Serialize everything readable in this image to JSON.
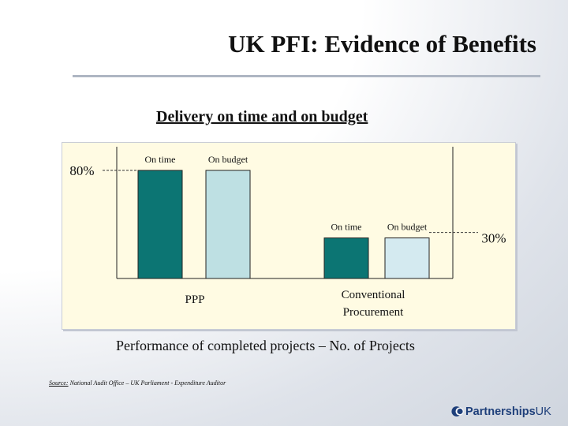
{
  "slide": {
    "title": "UK PFI: Evidence of  Benefits",
    "subtitle": "Delivery on time and on budget",
    "caption": "Performance of completed projects – No. of Projects",
    "source_label": "Source:",
    "source_text": " National Audit Office – UK Parliament - Expenditure Auditor",
    "logo_text": "Partnerships",
    "logo_suffix": "UK"
  },
  "colors": {
    "on_time": "#0c7573",
    "on_budget": "#bee0e3",
    "on_budget_conventional": "#d4eaf0",
    "panel": "#fffbe3",
    "brand": "#1e3f7a"
  },
  "chart_data": {
    "type": "bar",
    "groups": [
      "PPP",
      "Conventional Procurement"
    ],
    "series": [
      {
        "name": "On time",
        "values": [
          80,
          30
        ]
      },
      {
        "name": "On budget",
        "values": [
          80,
          30
        ]
      }
    ],
    "annotations": [
      "80%",
      "30%"
    ],
    "ylim": [
      0,
      100
    ],
    "grid": false,
    "legend": "none"
  }
}
